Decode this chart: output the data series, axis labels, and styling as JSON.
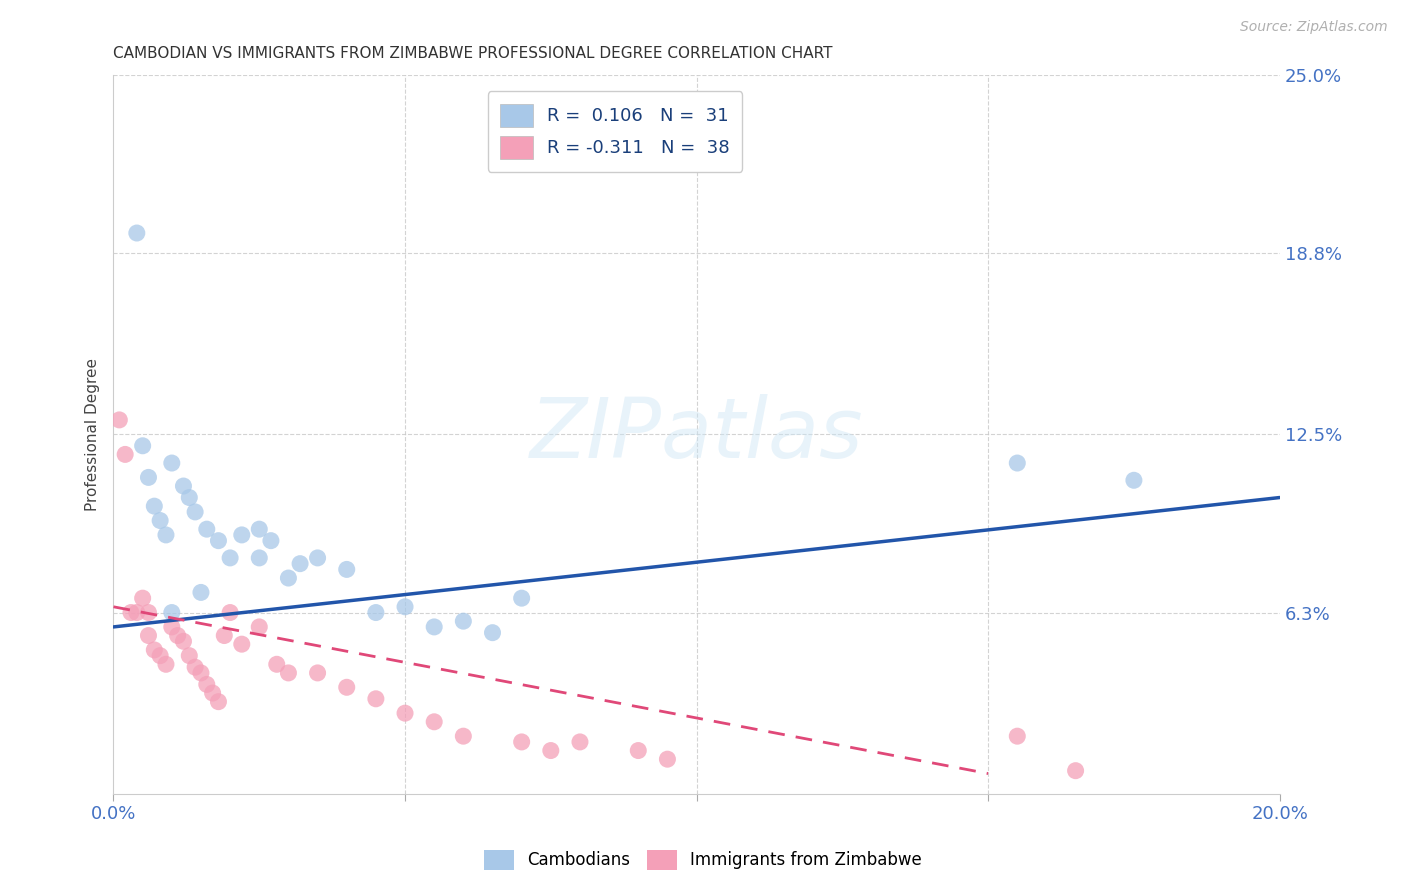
{
  "title": "CAMBODIAN VS IMMIGRANTS FROM ZIMBABWE PROFESSIONAL DEGREE CORRELATION CHART",
  "source": "Source: ZipAtlas.com",
  "ylabel_label": "Professional Degree",
  "xlim": [
    0.0,
    0.2
  ],
  "ylim": [
    0.0,
    0.25
  ],
  "xticks": [
    0.0,
    0.05,
    0.1,
    0.15,
    0.2
  ],
  "xtick_labels": [
    "0.0%",
    "",
    "",
    "",
    "20.0%"
  ],
  "ytick_labels": [
    "6.3%",
    "12.5%",
    "18.8%",
    "25.0%"
  ],
  "yticks": [
    0.063,
    0.125,
    0.188,
    0.25
  ],
  "grid_color": "#c8c8c8",
  "background_color": "#ffffff",
  "cambodian_color": "#a8c8e8",
  "zimbabwe_color": "#f4a0b8",
  "cambodian_line_color": "#2255aa",
  "zimbabwe_line_color": "#e04878",
  "legend_label_1": "R =  0.106   N =  31",
  "legend_label_2": "R = -0.311   N =  38",
  "legend_blue_label": "Cambodians",
  "legend_pink_label": "Immigrants from Zimbabwe",
  "watermark_text": "ZIPatlas",
  "cambodian_x": [
    0.004,
    0.005,
    0.006,
    0.007,
    0.008,
    0.009,
    0.01,
    0.012,
    0.013,
    0.014,
    0.016,
    0.018,
    0.02,
    0.022,
    0.025,
    0.027,
    0.03,
    0.032,
    0.035,
    0.04,
    0.045,
    0.05,
    0.055,
    0.06,
    0.065,
    0.07,
    0.01,
    0.015,
    0.025,
    0.155,
    0.175
  ],
  "cambodian_y": [
    0.195,
    0.121,
    0.11,
    0.1,
    0.095,
    0.09,
    0.115,
    0.107,
    0.103,
    0.098,
    0.092,
    0.088,
    0.082,
    0.09,
    0.082,
    0.088,
    0.075,
    0.08,
    0.082,
    0.078,
    0.063,
    0.065,
    0.058,
    0.06,
    0.056,
    0.068,
    0.063,
    0.07,
    0.092,
    0.115,
    0.109
  ],
  "zimbabwe_x": [
    0.001,
    0.002,
    0.003,
    0.004,
    0.005,
    0.006,
    0.006,
    0.007,
    0.008,
    0.009,
    0.01,
    0.011,
    0.012,
    0.013,
    0.014,
    0.015,
    0.016,
    0.017,
    0.018,
    0.019,
    0.02,
    0.022,
    0.025,
    0.028,
    0.03,
    0.035,
    0.04,
    0.045,
    0.05,
    0.055,
    0.06,
    0.07,
    0.075,
    0.08,
    0.09,
    0.095,
    0.155,
    0.165
  ],
  "zimbabwe_y": [
    0.13,
    0.118,
    0.063,
    0.063,
    0.068,
    0.063,
    0.055,
    0.05,
    0.048,
    0.045,
    0.058,
    0.055,
    0.053,
    0.048,
    0.044,
    0.042,
    0.038,
    0.035,
    0.032,
    0.055,
    0.063,
    0.052,
    0.058,
    0.045,
    0.042,
    0.042,
    0.037,
    0.033,
    0.028,
    0.025,
    0.02,
    0.018,
    0.015,
    0.018,
    0.015,
    0.012,
    0.02,
    0.008
  ],
  "blue_line_x0": 0.0,
  "blue_line_y0": 0.058,
  "blue_line_x1": 0.2,
  "blue_line_y1": 0.103,
  "pink_line_x0": 0.0,
  "pink_line_y0": 0.065,
  "pink_line_x1": 0.15,
  "pink_line_y1": 0.007
}
